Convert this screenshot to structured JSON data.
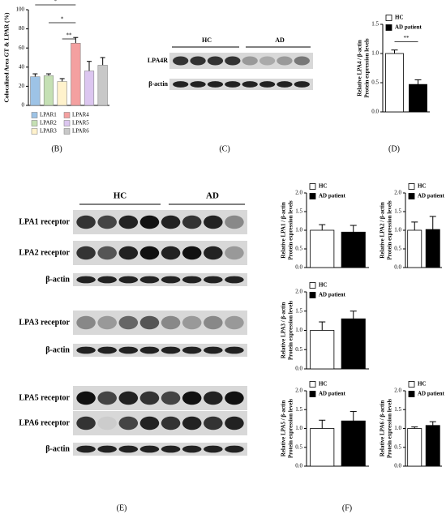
{
  "chart_data": [
    {
      "type": "bar",
      "ylabel": "Colocalized Area GT & LPAR (%)",
      "ylim": [
        0,
        100
      ],
      "yticks": [
        0,
        20,
        40,
        60,
        80,
        100
      ],
      "categories": [
        "LPAR1",
        "LPAR2",
        "LPAR3",
        "LPAR4",
        "LPAR5",
        "LPAR6"
      ],
      "values": [
        30,
        31,
        25,
        65,
        36,
        42
      ],
      "errors": [
        3,
        2,
        3,
        6,
        10,
        8
      ],
      "colors": [
        "#9dc3e6",
        "#c5e0b4",
        "#fff2cc",
        "#f4a0a0",
        "#dcc6f0",
        "#c8c8c8"
      ],
      "annotations": [
        "*",
        "*",
        "**"
      ]
    },
    {
      "type": "bar",
      "ylabel": [
        "Relative LPA4 / β-actin",
        "Protein expression levels"
      ],
      "ylim": [
        0,
        1.5
      ],
      "yticks": [
        {
          "value": 0,
          "label": "0.0"
        },
        0.5,
        {
          "value": 1,
          "label": "1.0"
        },
        1.5
      ],
      "series": [
        {
          "name": "HC",
          "color": "#ffffff",
          "values": [
            1.0
          ],
          "errors": [
            0.06
          ]
        },
        {
          "name": "AD patient",
          "color": "#000000",
          "values": [
            0.47
          ],
          "errors": [
            0.08
          ]
        }
      ],
      "annotations": [
        "**"
      ]
    },
    {
      "type": "bar",
      "ylabel": [
        "Relative LPA1 / β-actin",
        "Protein expression levels"
      ],
      "ylim": [
        0,
        2
      ],
      "yticks": [
        {
          "value": 0,
          "label": "0.0"
        },
        0.5,
        {
          "value": 1,
          "label": "1.0"
        },
        1.5,
        {
          "value": 2,
          "label": "2.0"
        }
      ],
      "series": [
        {
          "name": "HC",
          "color": "#ffffff",
          "values": [
            1.0
          ],
          "errors": [
            0.15
          ]
        },
        {
          "name": "AD patient",
          "color": "#000000",
          "values": [
            0.95
          ],
          "errors": [
            0.18
          ]
        }
      ]
    },
    {
      "type": "bar",
      "ylabel": [
        "Relative LPA2 / β-actin",
        "Protein expression levels"
      ],
      "ylim": [
        0,
        2
      ],
      "yticks": [
        {
          "value": 0,
          "label": "0.0"
        },
        0.5,
        {
          "value": 1,
          "label": "1.0"
        },
        1.5,
        {
          "value": 2,
          "label": "2.0"
        }
      ],
      "series": [
        {
          "name": "HC",
          "color": "#ffffff",
          "values": [
            1.0
          ],
          "errors": [
            0.22
          ]
        },
        {
          "name": "AD patient",
          "color": "#000000",
          "values": [
            1.02
          ],
          "errors": [
            0.35
          ]
        }
      ]
    },
    {
      "type": "bar",
      "ylabel": [
        "Relative LPA3 / β-actin",
        "Protein expression levels"
      ],
      "ylim": [
        0,
        2
      ],
      "yticks": [
        {
          "value": 0,
          "label": "0.0"
        },
        0.5,
        {
          "value": 1,
          "label": "1.0"
        },
        1.5,
        {
          "value": 2,
          "label": "2.0"
        }
      ],
      "series": [
        {
          "name": "HC",
          "color": "#ffffff",
          "values": [
            1.0
          ],
          "errors": [
            0.22
          ]
        },
        {
          "name": "AD patient",
          "color": "#000000",
          "values": [
            1.3
          ],
          "errors": [
            0.2
          ]
        }
      ]
    },
    {
      "type": "bar",
      "ylabel": [
        "Relative LPA5 / β-actin",
        "Protein expression levels"
      ],
      "ylim": [
        0,
        2
      ],
      "yticks": [
        {
          "value": 0,
          "label": "0.0"
        },
        0.5,
        {
          "value": 1,
          "label": "1.0"
        },
        1.5,
        {
          "value": 2,
          "label": "2.0"
        }
      ],
      "series": [
        {
          "name": "HC",
          "color": "#ffffff",
          "values": [
            1.0
          ],
          "errors": [
            0.22
          ]
        },
        {
          "name": "AD patient",
          "color": "#000000",
          "values": [
            1.2
          ],
          "errors": [
            0.25
          ]
        }
      ]
    },
    {
      "type": "bar",
      "ylabel": [
        "Relative LPA6 / β-actin",
        "Protein expression levels"
      ],
      "ylim": [
        0,
        2
      ],
      "yticks": [
        {
          "value": 0,
          "label": "0.0"
        },
        0.5,
        {
          "value": 1,
          "label": "1.0"
        },
        1.5,
        {
          "value": 2,
          "label": "2.0"
        }
      ],
      "series": [
        {
          "name": "HC",
          "color": "#ffffff",
          "values": [
            1.0
          ],
          "errors": [
            0.04
          ]
        },
        {
          "name": "AD patient",
          "color": "#000000",
          "values": [
            1.08
          ],
          "errors": [
            0.1
          ]
        }
      ]
    }
  ],
  "blots": {
    "C": {
      "groups": [
        "HC",
        "AD"
      ],
      "rows": [
        "LPA4R",
        "β-actin"
      ]
    },
    "E": {
      "groups": [
        "HC",
        "AD"
      ],
      "rows": [
        "LPA1 receptor",
        "LPA2 receptor",
        "β-actin",
        "LPA3 receptor",
        "β-actin",
        "LPA5 receptor",
        "LPA6 receptor",
        "β-actin"
      ]
    }
  },
  "panel_labels": [
    "(B)",
    "(C)",
    "(D)",
    "(E)",
    "(F)"
  ]
}
